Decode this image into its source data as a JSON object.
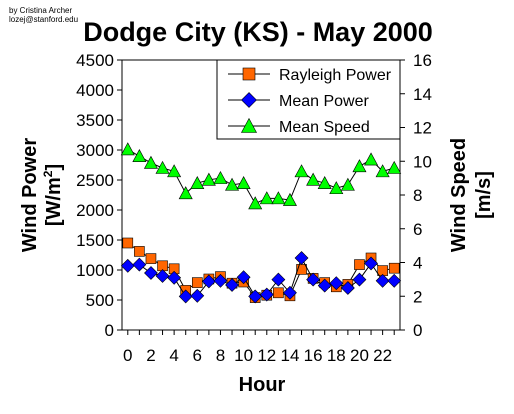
{
  "credit": {
    "line1": "by Cristina Archer",
    "line2": "lozej@stanford.edu"
  },
  "chart_data": {
    "type": "line",
    "title": "Dodge City (KS) - May 2000",
    "xlabel": "Hour",
    "ylabel_left": {
      "main": "Wind Power",
      "unit_prefix": "[W/m",
      "unit_sup": "2",
      "unit_suffix": "]"
    },
    "ylabel_right": {
      "main": "Wind Speed",
      "unit": "[m/s]"
    },
    "x": [
      0,
      1,
      2,
      3,
      4,
      5,
      6,
      7,
      8,
      9,
      10,
      11,
      12,
      13,
      14,
      15,
      16,
      17,
      18,
      19,
      20,
      21,
      22,
      23
    ],
    "x_tick_labels": [
      "0",
      "2",
      "4",
      "6",
      "8",
      "10",
      "12",
      "14",
      "16",
      "18",
      "20",
      "22"
    ],
    "x_tick_values": [
      0,
      2,
      4,
      6,
      8,
      10,
      12,
      14,
      16,
      18,
      20,
      22
    ],
    "xlim": [
      -0.5,
      23.5
    ],
    "ylim_left": [
      0,
      4500
    ],
    "y_left_ticks": [
      0,
      500,
      1000,
      1500,
      2000,
      2500,
      3000,
      3500,
      4000,
      4500
    ],
    "ylim_right": [
      0,
      16
    ],
    "y_right_ticks": [
      0,
      2,
      4,
      6,
      8,
      10,
      12,
      14,
      16
    ],
    "grid": false,
    "legend_position": "top-right",
    "series": [
      {
        "name": "Rayleigh Power",
        "axis": "left",
        "marker": "square",
        "color": "#ff6600",
        "values": [
          1450,
          1310,
          1190,
          1070,
          1020,
          660,
          790,
          850,
          890,
          780,
          800,
          540,
          580,
          620,
          570,
          1010,
          860,
          790,
          720,
          760,
          1090,
          1200,
          990,
          1030
        ]
      },
      {
        "name": "Mean Power",
        "axis": "left",
        "marker": "diamond",
        "color": "#0000ff",
        "values": [
          1070,
          1090,
          950,
          900,
          870,
          560,
          570,
          810,
          820,
          750,
          880,
          560,
          590,
          840,
          620,
          1200,
          840,
          740,
          780,
          700,
          840,
          1110,
          820,
          820
        ]
      },
      {
        "name": "Mean Speed",
        "axis": "right",
        "marker": "triangle",
        "color": "#00ff00",
        "values": [
          10.7,
          10.3,
          9.9,
          9.6,
          9.4,
          8.1,
          8.7,
          8.9,
          9.0,
          8.6,
          8.7,
          7.5,
          7.8,
          7.8,
          7.7,
          9.4,
          8.9,
          8.7,
          8.4,
          8.6,
          9.7,
          10.1,
          9.4,
          9.6
        ]
      }
    ]
  }
}
